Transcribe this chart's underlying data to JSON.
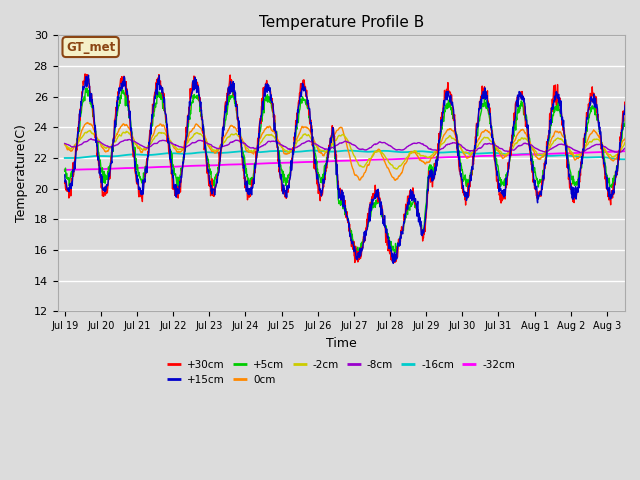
{
  "title": "Temperature Profile B",
  "xlabel": "Time",
  "ylabel": "Temperature(C)",
  "ylim": [
    12,
    30
  ],
  "background_color": "#dcdcdc",
  "grid_color": "white",
  "annotation_text": "GT_met",
  "annotation_color": "#8B4513",
  "annotation_bg": "#f5f0c8",
  "series_colors": {
    "+30cm": "#ff0000",
    "+15cm": "#0000cc",
    "+5cm": "#00cc00",
    "0cm": "#ff8800",
    "-2cm": "#cccc00",
    "-8cm": "#9900cc",
    "-16cm": "#00cccc",
    "-32cm": "#ff00ff"
  },
  "tick_labels": [
    "Jul 19",
    "Jul 20",
    "Jul 21",
    "Jul 22",
    "Jul 23",
    "Jul 24",
    "Jul 25",
    "Jul 26",
    "Jul 27",
    "Jul 28",
    "Jul 29",
    "Jul 30",
    "Jul 31",
    "Aug 1",
    "Aug 2",
    "Aug 3"
  ],
  "yticks": [
    12,
    14,
    16,
    18,
    20,
    22,
    24,
    26,
    28,
    30
  ]
}
